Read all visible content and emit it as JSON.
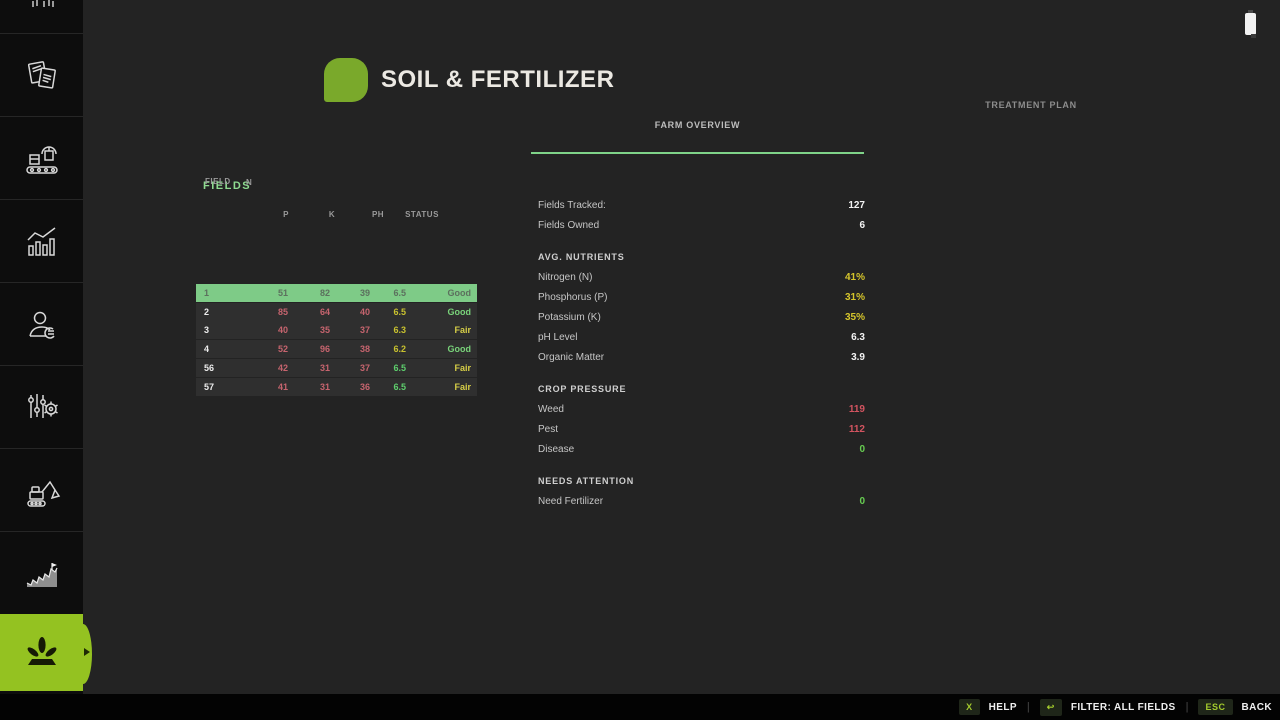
{
  "header": {
    "title": "SOIL & FERTILIZER"
  },
  "tabs": [
    {
      "id": "farm_overview",
      "label": "FARM OVERVIEW",
      "active": true
    },
    {
      "id": "treatment_plan",
      "label": "TREATMENT PLAN",
      "active": false
    }
  ],
  "window": {
    "battery_icon": "battery-vertical"
  },
  "fields_panel": {
    "title": "FIELDS",
    "overlay_headers": {
      "field": "FIELD",
      "n": "N"
    },
    "column_headers": [
      "P",
      "K",
      "PH",
      "STATUS"
    ],
    "rows": [
      {
        "field": "1",
        "values": [
          "51",
          "82",
          "39"
        ],
        "ph": "6.5",
        "status": "Good",
        "selected": true,
        "ph_tone": "muted",
        "status_tone": "muted"
      },
      {
        "field": "2",
        "values": [
          "85",
          "64",
          "40"
        ],
        "ph": "6.5",
        "status": "Good",
        "selected": false,
        "ph_tone": "yellow",
        "status_tone": "good"
      },
      {
        "field": "3",
        "values": [
          "40",
          "35",
          "37"
        ],
        "ph": "6.3",
        "status": "Fair",
        "selected": false,
        "ph_tone": "yellow",
        "status_tone": "fair"
      },
      {
        "field": "4",
        "values": [
          "52",
          "96",
          "38"
        ],
        "ph": "6.2",
        "status": "Good",
        "selected": false,
        "ph_tone": "yellow",
        "status_tone": "good"
      },
      {
        "field": "56",
        "values": [
          "42",
          "31",
          "37"
        ],
        "ph": "6.5",
        "status": "Fair",
        "selected": false,
        "ph_tone": "green",
        "status_tone": "fair"
      },
      {
        "field": "57",
        "values": [
          "41",
          "31",
          "36"
        ],
        "ph": "6.5",
        "status": "Fair",
        "selected": false,
        "ph_tone": "green",
        "status_tone": "fair"
      }
    ]
  },
  "stats": [
    {
      "kind": "stat",
      "label": "Fields Tracked:",
      "value": "127",
      "tone": "white"
    },
    {
      "kind": "stat",
      "label": "Fields Owned",
      "value": "6",
      "tone": "white"
    },
    {
      "kind": "section",
      "label": "AVG. NUTRIENTS"
    },
    {
      "kind": "stat",
      "label": "Nitrogen (N)",
      "value": "41%",
      "tone": "yellow"
    },
    {
      "kind": "stat",
      "label": "Phosphorus (P)",
      "value": "31%",
      "tone": "yellow"
    },
    {
      "kind": "stat",
      "label": "Potassium (K)",
      "value": "35%",
      "tone": "yellow"
    },
    {
      "kind": "stat",
      "label": "pH Level",
      "value": "6.3",
      "tone": "white"
    },
    {
      "kind": "stat",
      "label": "Organic Matter",
      "value": "3.9",
      "tone": "white"
    },
    {
      "kind": "section",
      "label": "CROP PRESSURE"
    },
    {
      "kind": "stat",
      "label": "Weed",
      "value": "119",
      "tone": "red"
    },
    {
      "kind": "stat",
      "label": "Pest",
      "value": "112",
      "tone": "red"
    },
    {
      "kind": "stat",
      "label": "Disease",
      "value": "0",
      "tone": "green"
    },
    {
      "kind": "section",
      "label": "NEEDS ATTENTION"
    },
    {
      "kind": "stat",
      "label": "Need Fertilizer",
      "value": "0",
      "tone": "green"
    }
  ],
  "bottom_bar": [
    {
      "key": "X",
      "label": "HELP",
      "key_icon": ""
    },
    {
      "key": "↩",
      "label": "FILTER: ALL FIELDS",
      "key_icon": "return-arrow-icon"
    },
    {
      "key": "ESC",
      "label": "BACK",
      "key_icon": ""
    }
  ],
  "sidebar": {
    "items": [
      {
        "name": "top-partial",
        "active": false
      },
      {
        "name": "contracts",
        "active": false
      },
      {
        "name": "production",
        "active": false
      },
      {
        "name": "statistics",
        "active": false
      },
      {
        "name": "finances",
        "active": false
      },
      {
        "name": "settings",
        "active": false
      },
      {
        "name": "construction",
        "active": false
      },
      {
        "name": "prices",
        "active": false
      },
      {
        "name": "soil-fertilizer",
        "active": true
      }
    ]
  },
  "colors": {
    "accent_green": "#94c221",
    "logo_green": "#7aa92b",
    "selected_row_green": "#7ecb87",
    "tab_underline_green": "#7fd389",
    "value_yellow": "#d6c62c",
    "value_red": "#d25460",
    "value_green": "#67cd51",
    "npk_red": "#c6646e"
  }
}
